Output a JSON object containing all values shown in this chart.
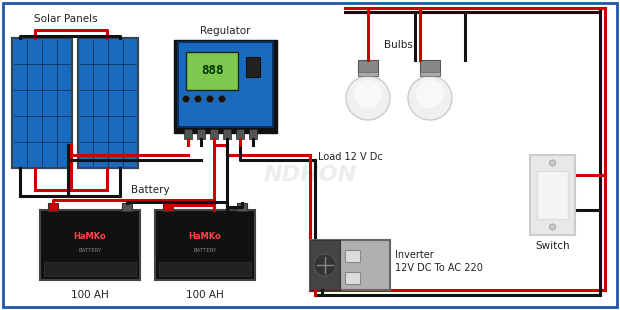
{
  "bg_color": "#ffffff",
  "border_color": "#2255aa",
  "labels": {
    "solar_panels": "Solar Panels",
    "regulator": "Regulator",
    "battery": "Battery",
    "battery_ah1": "100 AH",
    "battery_ah2": "100 AH",
    "bulbs": "Bulbs",
    "load": "Load 12 V Dc",
    "switch": "Switch",
    "inverter": "Inverter\n12V DC To AC 220",
    "watermark": "NDHON"
  },
  "wire_red": "#cc0000",
  "wire_black": "#111111",
  "panel_color": "#1a6abf",
  "panel_dark": "#0d3d6e",
  "reg_body": "#1a6abf",
  "reg_dark": "#111111",
  "battery_color": "#111111",
  "bulb_body": "#f0f0f0",
  "bulb_base": "#888888",
  "switch_color": "#eeeeee",
  "inverter_color": "#aaaaaa",
  "lw": 2.2
}
